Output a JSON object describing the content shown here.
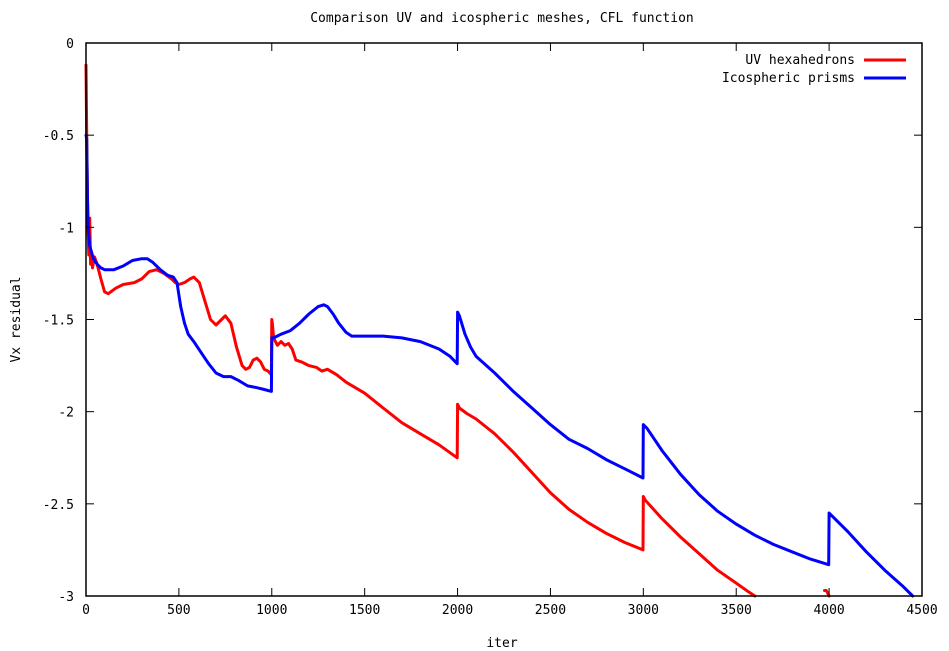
{
  "chart_data": {
    "type": "line",
    "title": "Comparison UV and icospheric meshes, CFL function",
    "xlabel": "iter",
    "ylabel": "Vx residual",
    "xlim": [
      0,
      4500
    ],
    "ylim": [
      -3,
      0
    ],
    "x_ticks": [
      0,
      500,
      1000,
      1500,
      2000,
      2500,
      3000,
      3500,
      4000,
      4500
    ],
    "y_ticks": [
      0,
      -0.5,
      -1,
      -1.5,
      -2,
      -2.5,
      -3
    ],
    "x_tick_labels": [
      "0",
      "500",
      "1000",
      "1500",
      "2000",
      "2500",
      "3000",
      "3500",
      "4000",
      "4500"
    ],
    "y_tick_labels": [
      "0",
      "-0.5",
      "-1",
      "-1.5",
      "-2",
      "-2.5",
      "-3"
    ],
    "legend_position": "top-right",
    "grid": false,
    "series": [
      {
        "name": "UV hexahedrons",
        "color": "#ff0000",
        "segments": [
          [
            [
              0,
              -0.12
            ],
            [
              5,
              -0.6
            ],
            [
              10,
              -1.0
            ],
            [
              15,
              -1.15
            ],
            [
              20,
              -0.95
            ],
            [
              25,
              -1.2
            ],
            [
              30,
              -1.14
            ],
            [
              35,
              -1.22
            ],
            [
              45,
              -1.16
            ],
            [
              60,
              -1.2
            ],
            [
              80,
              -1.28
            ],
            [
              100,
              -1.35
            ],
            [
              120,
              -1.36
            ],
            [
              160,
              -1.33
            ],
            [
              200,
              -1.31
            ],
            [
              260,
              -1.3
            ],
            [
              300,
              -1.28
            ],
            [
              340,
              -1.24
            ],
            [
              380,
              -1.23
            ],
            [
              420,
              -1.25
            ],
            [
              460,
              -1.28
            ],
            [
              480,
              -1.3
            ],
            [
              500,
              -1.31
            ],
            [
              530,
              -1.3
            ],
            [
              560,
              -1.28
            ],
            [
              580,
              -1.27
            ],
            [
              610,
              -1.3
            ],
            [
              640,
              -1.4
            ],
            [
              670,
              -1.5
            ],
            [
              700,
              -1.53
            ],
            [
              730,
              -1.5
            ],
            [
              750,
              -1.48
            ],
            [
              780,
              -1.52
            ],
            [
              810,
              -1.65
            ],
            [
              840,
              -1.75
            ],
            [
              860,
              -1.77
            ],
            [
              880,
              -1.76
            ],
            [
              900,
              -1.72
            ],
            [
              920,
              -1.71
            ],
            [
              940,
              -1.73
            ],
            [
              960,
              -1.77
            ],
            [
              980,
              -1.78
            ],
            [
              998,
              -1.8
            ],
            [
              1000,
              -1.5
            ],
            [
              1003,
              -1.52
            ],
            [
              1010,
              -1.6
            ],
            [
              1030,
              -1.64
            ],
            [
              1050,
              -1.62
            ],
            [
              1070,
              -1.64
            ],
            [
              1090,
              -1.63
            ],
            [
              1110,
              -1.66
            ],
            [
              1130,
              -1.72
            ],
            [
              1160,
              -1.73
            ],
            [
              1200,
              -1.75
            ],
            [
              1240,
              -1.76
            ],
            [
              1270,
              -1.78
            ],
            [
              1300,
              -1.77
            ],
            [
              1350,
              -1.8
            ],
            [
              1400,
              -1.84
            ],
            [
              1500,
              -1.9
            ],
            [
              1600,
              -1.98
            ],
            [
              1700,
              -2.06
            ],
            [
              1800,
              -2.12
            ],
            [
              1900,
              -2.18
            ],
            [
              1998,
              -2.25
            ],
            [
              2000,
              -1.96
            ],
            [
              2010,
              -1.98
            ],
            [
              2050,
              -2.01
            ],
            [
              2100,
              -2.04
            ],
            [
              2200,
              -2.12
            ],
            [
              2300,
              -2.22
            ],
            [
              2400,
              -2.33
            ],
            [
              2500,
              -2.44
            ],
            [
              2600,
              -2.53
            ],
            [
              2700,
              -2.6
            ],
            [
              2800,
              -2.66
            ],
            [
              2900,
              -2.71
            ],
            [
              2998,
              -2.75
            ],
            [
              3000,
              -2.46
            ],
            [
              3010,
              -2.48
            ],
            [
              3100,
              -2.58
            ],
            [
              3200,
              -2.68
            ],
            [
              3300,
              -2.77
            ],
            [
              3400,
              -2.86
            ],
            [
              3500,
              -2.93
            ],
            [
              3570,
              -2.98
            ],
            [
              3600,
              -3.0
            ]
          ],
          [
            [
              3975,
              -2.97
            ],
            [
              3985,
              -2.97
            ],
            [
              3995,
              -2.99
            ],
            [
              4000,
              -3.0
            ]
          ]
        ]
      },
      {
        "name": "Icospheric prisms",
        "color": "#0000ff",
        "segments": [
          [
            [
              0,
              -0.5
            ],
            [
              4,
              -0.52
            ],
            [
              8,
              -0.85
            ],
            [
              12,
              -1.0
            ],
            [
              20,
              -1.1
            ],
            [
              40,
              -1.17
            ],
            [
              60,
              -1.2
            ],
            [
              80,
              -1.22
            ],
            [
              100,
              -1.23
            ],
            [
              150,
              -1.23
            ],
            [
              200,
              -1.21
            ],
            [
              250,
              -1.18
            ],
            [
              300,
              -1.17
            ],
            [
              330,
              -1.17
            ],
            [
              360,
              -1.19
            ],
            [
              400,
              -1.23
            ],
            [
              440,
              -1.26
            ],
            [
              470,
              -1.27
            ],
            [
              490,
              -1.3
            ],
            [
              510,
              -1.43
            ],
            [
              530,
              -1.52
            ],
            [
              550,
              -1.58
            ],
            [
              580,
              -1.62
            ],
            [
              620,
              -1.68
            ],
            [
              660,
              -1.74
            ],
            [
              700,
              -1.79
            ],
            [
              740,
              -1.81
            ],
            [
              780,
              -1.81
            ],
            [
              820,
              -1.83
            ],
            [
              870,
              -1.86
            ],
            [
              920,
              -1.87
            ],
            [
              960,
              -1.88
            ],
            [
              998,
              -1.89
            ],
            [
              1000,
              -1.6
            ],
            [
              1010,
              -1.6
            ],
            [
              1050,
              -1.58
            ],
            [
              1100,
              -1.56
            ],
            [
              1150,
              -1.52
            ],
            [
              1200,
              -1.47
            ],
            [
              1250,
              -1.43
            ],
            [
              1280,
              -1.42
            ],
            [
              1300,
              -1.43
            ],
            [
              1330,
              -1.47
            ],
            [
              1360,
              -1.52
            ],
            [
              1400,
              -1.57
            ],
            [
              1430,
              -1.59
            ],
            [
              1500,
              -1.59
            ],
            [
              1600,
              -1.59
            ],
            [
              1700,
              -1.6
            ],
            [
              1800,
              -1.62
            ],
            [
              1900,
              -1.66
            ],
            [
              1960,
              -1.7
            ],
            [
              1998,
              -1.74
            ],
            [
              2000,
              -1.46
            ],
            [
              2010,
              -1.48
            ],
            [
              2040,
              -1.58
            ],
            [
              2070,
              -1.65
            ],
            [
              2100,
              -1.7
            ],
            [
              2200,
              -1.79
            ],
            [
              2300,
              -1.89
            ],
            [
              2400,
              -1.98
            ],
            [
              2500,
              -2.07
            ],
            [
              2600,
              -2.15
            ],
            [
              2700,
              -2.2
            ],
            [
              2800,
              -2.26
            ],
            [
              2900,
              -2.31
            ],
            [
              2998,
              -2.36
            ],
            [
              3000,
              -2.07
            ],
            [
              3020,
              -2.09
            ],
            [
              3100,
              -2.21
            ],
            [
              3200,
              -2.34
            ],
            [
              3300,
              -2.45
            ],
            [
              3400,
              -2.54
            ],
            [
              3500,
              -2.61
            ],
            [
              3600,
              -2.67
            ],
            [
              3700,
              -2.72
            ],
            [
              3800,
              -2.76
            ],
            [
              3900,
              -2.8
            ],
            [
              3998,
              -2.83
            ],
            [
              4000,
              -2.55
            ],
            [
              4020,
              -2.57
            ],
            [
              4100,
              -2.65
            ],
            [
              4200,
              -2.76
            ],
            [
              4300,
              -2.86
            ],
            [
              4400,
              -2.95
            ],
            [
              4450,
              -3.0
            ]
          ]
        ]
      }
    ]
  }
}
